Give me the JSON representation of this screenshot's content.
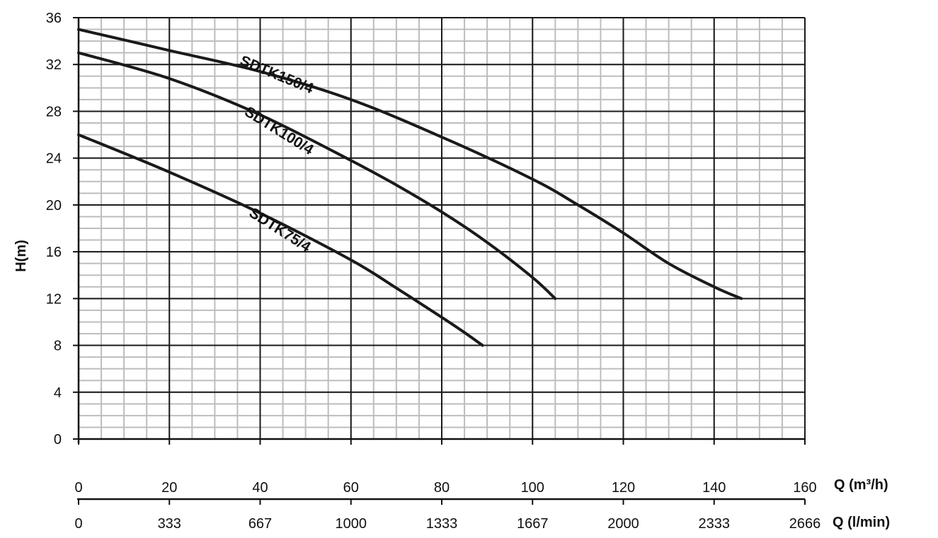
{
  "chart_data": {
    "type": "line",
    "ylabel": "H(m)",
    "xlabel": "Q (m³/h)",
    "x2label": "Q (l/min)",
    "xlim": [
      0,
      160
    ],
    "ylim": [
      0,
      36
    ],
    "y_ticks": [
      0,
      4,
      8,
      12,
      16,
      20,
      24,
      28,
      32,
      36
    ],
    "y_minor_step": 1,
    "x_ticks": [
      0,
      20,
      40,
      60,
      80,
      100,
      120,
      140,
      160
    ],
    "x_minor_step": 5,
    "x2_tick_labels": [
      "0",
      "333",
      "667",
      "1000",
      "1333",
      "1667",
      "2000",
      "2333",
      "2666"
    ],
    "grid": true,
    "series": [
      {
        "name": "SDTK150/4",
        "x": [
          0,
          20,
          40,
          60,
          80,
          100,
          110,
          120,
          130,
          140,
          146
        ],
        "y": [
          35,
          33.2,
          31.4,
          29,
          25.8,
          22.2,
          20,
          17.6,
          15,
          13,
          12
        ]
      },
      {
        "name": "SDTK100/4",
        "x": [
          0,
          20,
          40,
          60,
          70,
          80,
          90,
          100,
          105
        ],
        "y": [
          33,
          30.8,
          27.7,
          23.8,
          21.7,
          19.4,
          16.8,
          13.8,
          12
        ]
      },
      {
        "name": "SDTK75/4",
        "x": [
          0,
          20,
          40,
          60,
          70,
          80,
          85,
          89
        ],
        "y": [
          26,
          22.8,
          19.3,
          15.3,
          12.9,
          10.4,
          9.1,
          8
        ]
      }
    ]
  }
}
